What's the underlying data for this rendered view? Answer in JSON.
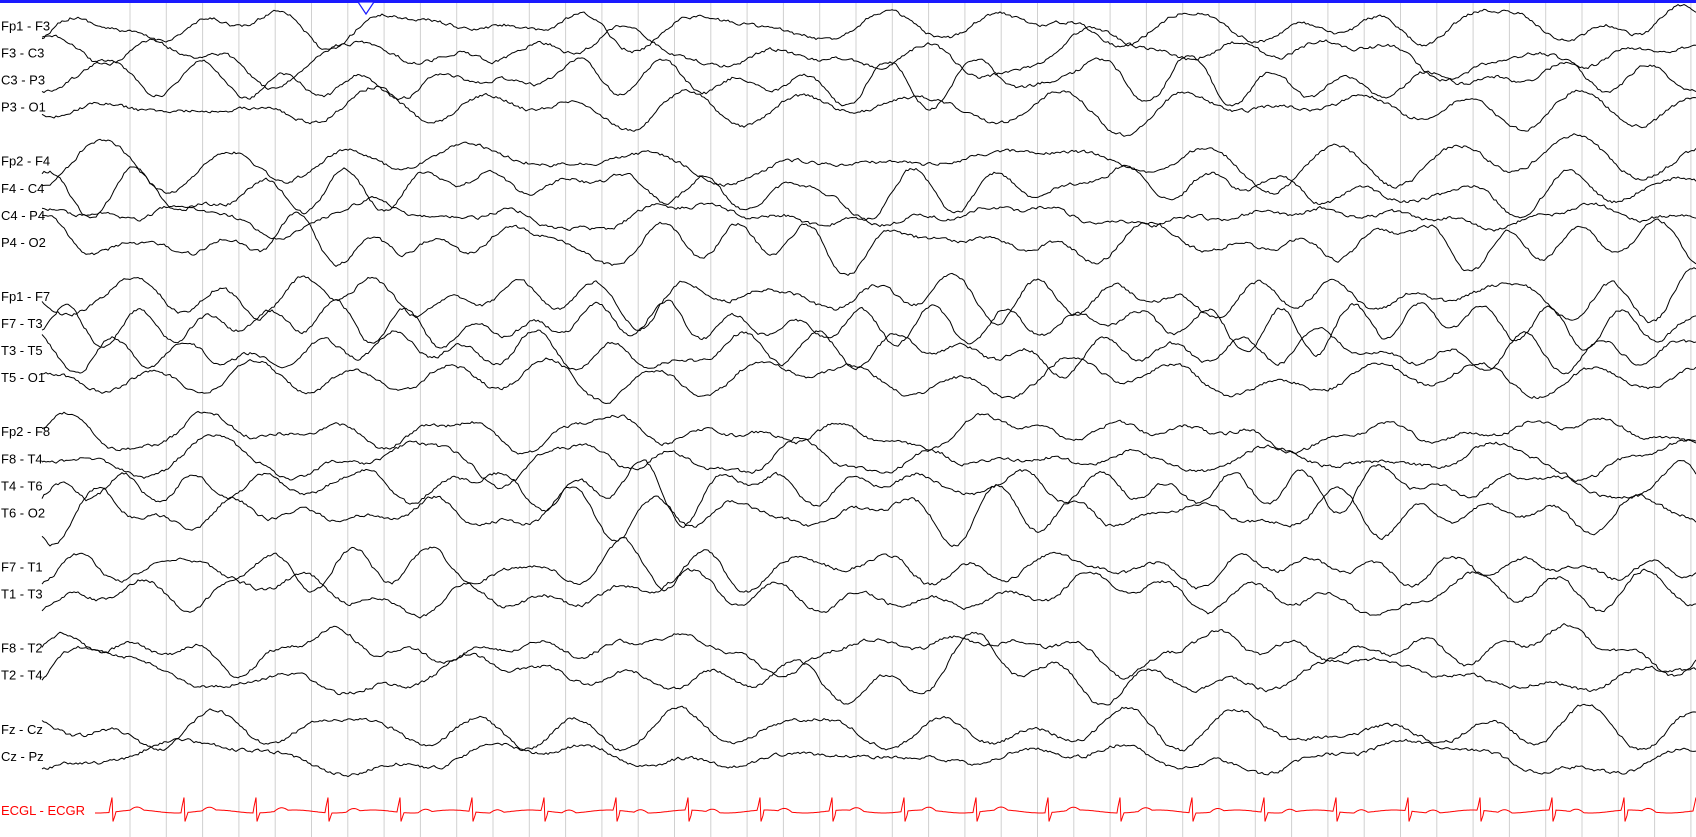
{
  "montage_groups": [
    [
      "Fp1 - F3",
      "F3 - C3",
      "C3 - P3",
      "P3 - O1"
    ],
    [
      "Fp2 - F4",
      "F4 - C4",
      "C4 - P4",
      "P4 - O2"
    ],
    [
      "Fp1 - F7",
      "F7 - T3",
      "T3 - T5",
      "T5 - O1"
    ],
    [
      "Fp2 - F8",
      "F8 - T4",
      "T4 - T6",
      "T6 - O2"
    ],
    [
      "F7 - T1",
      "T1 - T3"
    ],
    [
      "F8 - T2",
      "T2 - T4"
    ],
    [
      "Fz - Cz",
      "Cz - Pz"
    ]
  ],
  "ecg": {
    "label": "ECGL - ECGR",
    "color": "#ff0000"
  }
}
